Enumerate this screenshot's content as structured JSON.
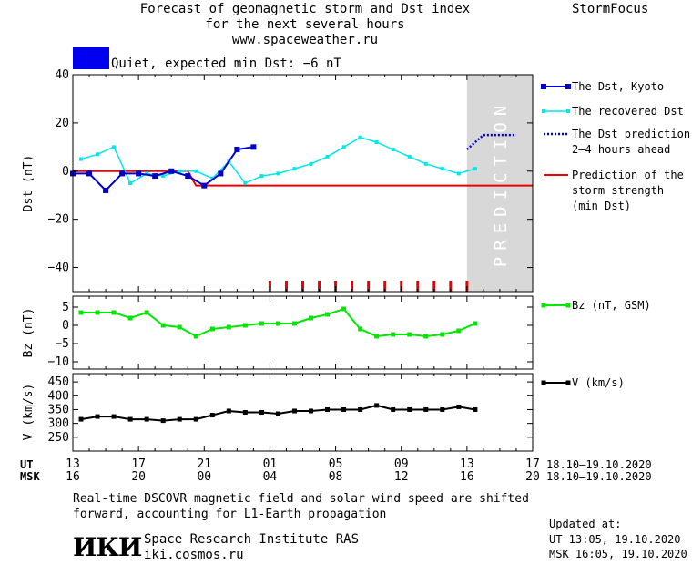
{
  "header": {
    "title_line1": "Forecast of geomagnetic storm and Dst index",
    "title_line2": "for the next several hours",
    "website": "www.spaceweather.ru",
    "brand": "StormFocus"
  },
  "status": {
    "color": "#0000ee",
    "text": "Quiet, expected min Dst: −6 nT"
  },
  "legend": {
    "dst_kyoto": "The Dst, Kyoto",
    "dst_recovered": "The recovered Dst",
    "dst_prediction_line1": "The Dst prediction",
    "dst_prediction_line2": "2–4 hours ahead",
    "storm_line1": "Prediction of the",
    "storm_line2": "storm strength",
    "storm_line3": "(min Dst)",
    "bz": "Bz (nT, GSM)",
    "v": "V (km/s)"
  },
  "time_axis": {
    "ut_label": "UT",
    "msk_label": "MSK",
    "ut_ticks": [
      "13",
      "17",
      "21",
      "01",
      "05",
      "09",
      "13",
      "17"
    ],
    "msk_ticks": [
      "16",
      "20",
      "00",
      "04",
      "08",
      "12",
      "16",
      "20"
    ],
    "date_range": "18.10–19.10.2020"
  },
  "footer": {
    "note_line1": "Real-time DSCOVR magnetic field and solar wind speed are shifted",
    "note_line2": "forward, accounting for L1-Earth propagation",
    "logo_text": "ИКИ",
    "institute": "Space Research Institute RAS",
    "institute_url": "iki.cosmos.ru",
    "updated_label": "Updated at:",
    "updated_ut": "UT   13:05, 19.10.2020",
    "updated_msk": "MSK 16:05, 19.10.2020"
  },
  "chart_data": [
    {
      "type": "line",
      "ylabel": "Dst (nT)",
      "ylim": [
        -50,
        40
      ],
      "yticks": [
        40,
        20,
        0,
        -20,
        -40
      ],
      "xlim": [
        13,
        41
      ],
      "x_unit": "hours UT from 00:00 18.10.2020",
      "prediction_band": {
        "label": "PREDICTION",
        "x_start": 37,
        "x_end": 41,
        "color": "#d8d8d8"
      },
      "series": [
        {
          "name": "The Dst, Kyoto",
          "color": "#0000cc",
          "style": "line-square-filled",
          "x": [
            13,
            14,
            15,
            16,
            17,
            18,
            19,
            20,
            21,
            22,
            23,
            24
          ],
          "y": [
            -1,
            -1,
            -8,
            -1,
            -1,
            -2,
            0,
            -2,
            -6,
            -1,
            9,
            10
          ]
        },
        {
          "name": "The recovered Dst",
          "color": "#00e8e8",
          "style": "line-square-small",
          "x": [
            13.5,
            14.5,
            15.5,
            16.5,
            17.5,
            18.5,
            19.5,
            20.5,
            21.5,
            22.5,
            23.5,
            24.5,
            25.5,
            26.5,
            27.5,
            28.5,
            29.5,
            30.5,
            31.5,
            32.5,
            33.5,
            34.5,
            35.5,
            36.5,
            37.5
          ],
          "y": [
            5,
            7,
            10,
            -5,
            -1,
            -2,
            0,
            0,
            -3,
            4,
            -5,
            -2,
            -1,
            1,
            3,
            6,
            10,
            14,
            12,
            9,
            6,
            3,
            1,
            -1,
            1
          ]
        },
        {
          "name": "The Dst prediction 2–4 hours ahead",
          "color": "#0000cc",
          "style": "dotted",
          "x": [
            37,
            38,
            39,
            40
          ],
          "y": [
            9,
            15,
            15,
            15
          ]
        },
        {
          "name": "Prediction of the storm strength (min Dst)",
          "color": "#ee0000",
          "style": "line",
          "x": [
            13,
            20,
            20.5,
            41
          ],
          "y": [
            0,
            0,
            -6,
            -6
          ]
        }
      ],
      "event_markers": {
        "color": "#ee0000",
        "x": [
          25,
          26,
          27,
          28,
          29,
          30,
          31,
          32,
          33,
          34,
          35,
          36,
          37
        ]
      }
    },
    {
      "type": "line",
      "ylabel": "Bz (nT)",
      "ylim": [
        -12,
        8
      ],
      "yticks": [
        5,
        0,
        -5,
        -10
      ],
      "xlim": [
        13,
        41
      ],
      "series": [
        {
          "name": "Bz (nT, GSM)",
          "color": "#00e800",
          "x": [
            13.5,
            14.5,
            15.5,
            16.5,
            17.5,
            18.5,
            19.5,
            20.5,
            21.5,
            22.5,
            23.5,
            24.5,
            25.5,
            26.5,
            27.5,
            28.5,
            29.5,
            30.5,
            31.5,
            32.5,
            33.5,
            34.5,
            35.5,
            36.5,
            37.5
          ],
          "y": [
            3.5,
            3.5,
            3.5,
            2,
            3.5,
            0,
            -0.5,
            -3,
            -1,
            -0.5,
            0,
            0.5,
            0.5,
            0.5,
            2,
            3,
            4.5,
            -1,
            -3,
            -2.5,
            -2.5,
            -3,
            -2.5,
            -1.5,
            0.5
          ]
        }
      ]
    },
    {
      "type": "line",
      "ylabel": "V (km/s)",
      "ylim": [
        200,
        480
      ],
      "yticks": [
        450,
        400,
        350,
        300,
        250
      ],
      "xlim": [
        13,
        41
      ],
      "series": [
        {
          "name": "V (km/s)",
          "color": "#000000",
          "x": [
            13.5,
            14.5,
            15.5,
            16.5,
            17.5,
            18.5,
            19.5,
            20.5,
            21.5,
            22.5,
            23.5,
            24.5,
            25.5,
            26.5,
            27.5,
            28.5,
            29.5,
            30.5,
            31.5,
            32.5,
            33.5,
            34.5,
            35.5,
            36.5,
            37.5
          ],
          "y": [
            315,
            325,
            325,
            315,
            315,
            310,
            315,
            315,
            330,
            345,
            340,
            340,
            335,
            345,
            345,
            350,
            350,
            350,
            365,
            350,
            350,
            350,
            350,
            360,
            350
          ]
        }
      ]
    }
  ]
}
